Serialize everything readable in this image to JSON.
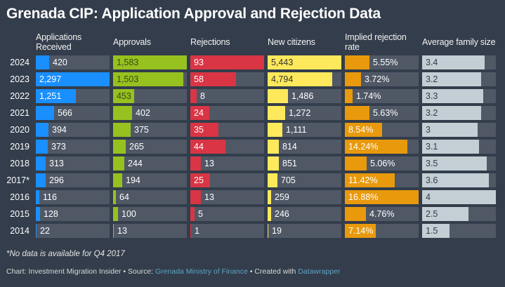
{
  "chart_data": {
    "type": "table",
    "title": "Grenada CIP: Application Approval and Rejection Data",
    "row_label_column": "Year",
    "rows": [
      "2024",
      "2023",
      "2022",
      "2021",
      "2020",
      "2019",
      "2018",
      "2017*",
      "2016",
      "2015",
      "2014"
    ],
    "columns": [
      {
        "key": "applications",
        "header": "Applications Received",
        "color": "#1a8fff",
        "max": 2297,
        "values": [
          420,
          2297,
          1251,
          566,
          394,
          373,
          313,
          296,
          116,
          128,
          22
        ],
        "labels": [
          "420",
          "2,297",
          "1,251",
          "566",
          "394",
          "373",
          "313",
          "296",
          "116",
          "128",
          "22"
        ]
      },
      {
        "key": "approvals",
        "header": "Approvals",
        "color": "#97c11f",
        "max": 1583,
        "values": [
          1583,
          1503,
          453,
          402,
          375,
          265,
          244,
          194,
          64,
          100,
          13
        ],
        "labels": [
          "1,583",
          "1,503",
          "453",
          "402",
          "375",
          "265",
          "244",
          "194",
          "64",
          "100",
          "13"
        ]
      },
      {
        "key": "rejections",
        "header": "Rejections",
        "color": "#d93545",
        "max": 93,
        "values": [
          93,
          58,
          8,
          24,
          35,
          44,
          13,
          25,
          13,
          5,
          1
        ],
        "labels": [
          "93",
          "58",
          "8",
          "24",
          "35",
          "44",
          "13",
          "25",
          "13",
          "5",
          "1"
        ]
      },
      {
        "key": "new_citizens",
        "header": "New citizens",
        "color": "#fde95b",
        "max": 5443,
        "values": [
          5443,
          4794,
          1486,
          1272,
          1111,
          814,
          851,
          705,
          259,
          246,
          19
        ],
        "labels": [
          "5,443",
          "4,794",
          "1,486",
          "1,272",
          "1,111",
          "814",
          "851",
          "705",
          "259",
          "246",
          "19"
        ]
      },
      {
        "key": "rejection_rate",
        "header": "Implied rejection rate",
        "color": "#e8990c",
        "max": 16.88,
        "values": [
          5.55,
          3.72,
          1.74,
          5.63,
          8.54,
          14.24,
          5.06,
          11.42,
          16.88,
          4.76,
          7.14
        ],
        "labels": [
          "5.55%",
          "3.72%",
          "1.74%",
          "5.63%",
          "8.54%",
          "14.24%",
          "5.06%",
          "11.42%",
          "16.88%",
          "4.76%",
          "7.14%"
        ]
      },
      {
        "key": "family_size",
        "header": "Average family size",
        "color": "#c3cfd4",
        "max": 4,
        "values": [
          3.4,
          3.2,
          3.3,
          3.2,
          3,
          3.1,
          3.5,
          3.6,
          4,
          2.5,
          1.5
        ],
        "labels": [
          "3.4",
          "3.2",
          "3.3",
          "3.2",
          "3",
          "3.1",
          "3.5",
          "3.6",
          "4",
          "2.5",
          "1.5"
        ]
      }
    ],
    "notes": "*No data is available for Q4 2017"
  },
  "footer": {
    "chart_prefix": "Chart: Investment Migration Insider • Source: ",
    "source_link": "Grenada Ministry of Finance",
    "created_prefix": " • Created with ",
    "created_link": "Datawrapper"
  }
}
